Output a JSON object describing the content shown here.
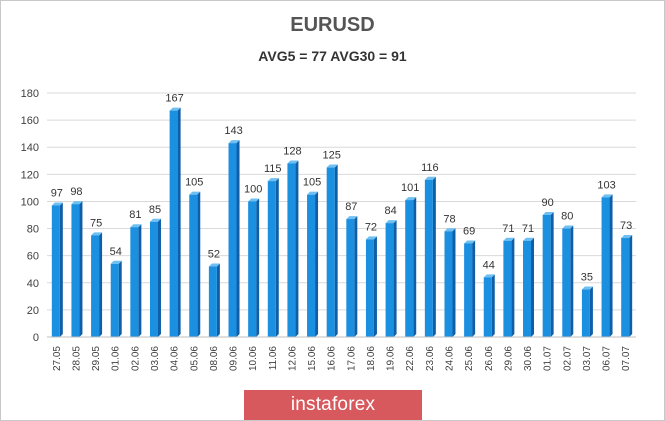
{
  "header": {
    "title": "EURUSD",
    "subtitle": "AVG5 = 77 AVG30 = 91"
  },
  "watermark": {
    "text": "instaforex",
    "color": "#d7585d"
  },
  "colors": {
    "bar_front": "#1b8fe0",
    "bar_side": "#0f5fa8",
    "bar_top": "#6fc0f2",
    "grid": "#d9d9d9",
    "axis_text": "#404040"
  },
  "chart_data": {
    "type": "bar",
    "title": "EURUSD",
    "subtitle": "AVG5 = 77 AVG30 = 91",
    "categories": [
      "27.05",
      "28.05",
      "29.05",
      "01.06",
      "02.06",
      "03.06",
      "04.06",
      "05.06",
      "08.06",
      "09.06",
      "10.06",
      "11.06",
      "12.06",
      "15.06",
      "16.06",
      "17.06",
      "18.06",
      "19.06",
      "22.06",
      "23.06",
      "24.06",
      "25.06",
      "26.06",
      "29.06",
      "30.06",
      "01.07",
      "02.07",
      "03.07",
      "06.07",
      "07.07"
    ],
    "values": [
      97,
      98,
      75,
      54,
      81,
      85,
      167,
      105,
      52,
      143,
      100,
      115,
      128,
      105,
      125,
      87,
      72,
      84,
      101,
      116,
      78,
      69,
      44,
      71,
      71,
      90,
      80,
      35,
      103,
      73
    ],
    "yticks": [
      0,
      20,
      40,
      60,
      80,
      100,
      120,
      140,
      160,
      180
    ],
    "ylim": [
      0,
      180
    ],
    "grid": true,
    "legend": "none"
  }
}
